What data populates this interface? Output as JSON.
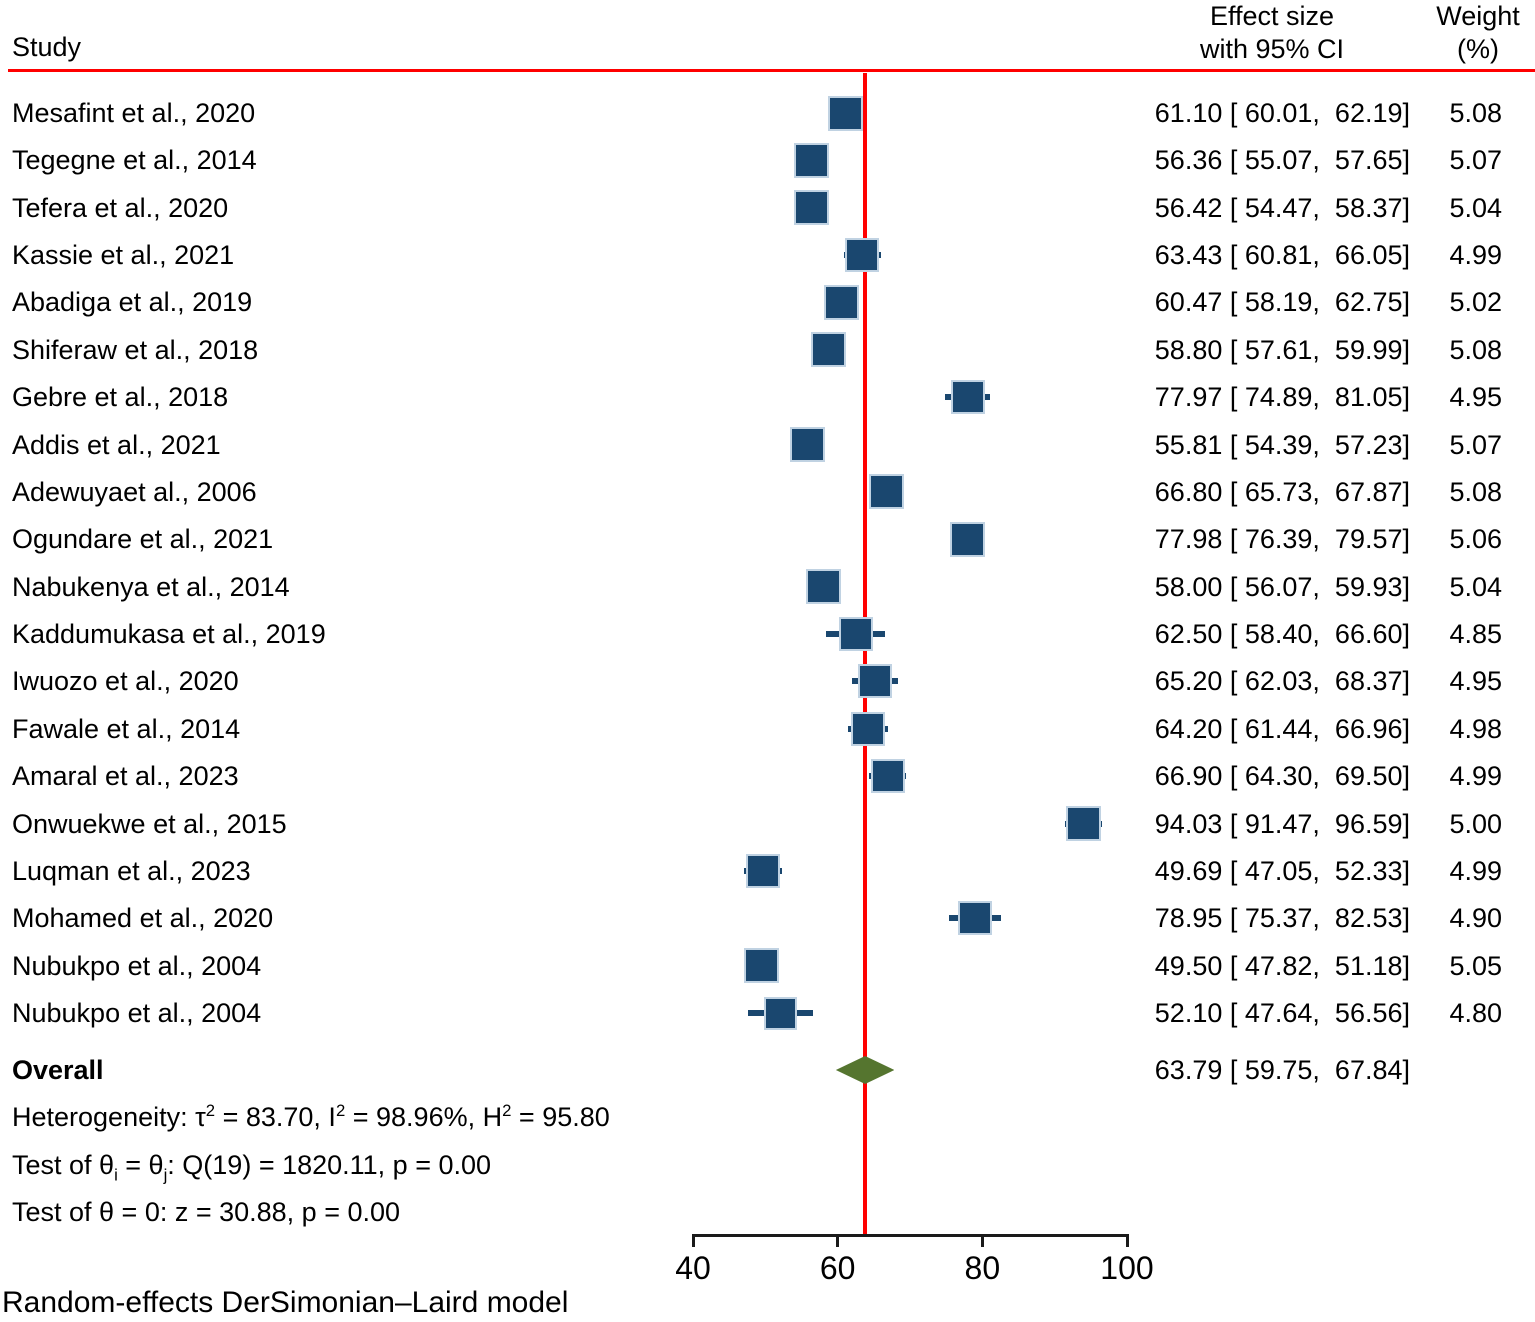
{
  "header": {
    "study_col": "Study",
    "effect_col_line1": "Effect size",
    "effect_col_line2": "with 95% CI",
    "weight_col_line1": "Weight",
    "weight_col_line2": "(%)"
  },
  "chart_data": {
    "type": "forest",
    "x_axis": {
      "ticks": [
        "40",
        "60",
        "80",
        "100"
      ],
      "tick_values": [
        40,
        60,
        80,
        100
      ],
      "range": [
        40,
        100
      ]
    },
    "reference_line_value": 63.79,
    "studies": [
      {
        "label": "Mesafint et al., 2020",
        "effect": 61.1,
        "ci_low": 60.01,
        "ci_high": 62.19,
        "weight": 5.08,
        "effect_text": "61.10 [ 60.01,  62.19]",
        "weight_text": "5.08"
      },
      {
        "label": "Tegegne et al., 2014",
        "effect": 56.36,
        "ci_low": 55.07,
        "ci_high": 57.65,
        "weight": 5.07,
        "effect_text": "56.36 [ 55.07,  57.65]",
        "weight_text": "5.07"
      },
      {
        "label": "Tefera et al., 2020",
        "effect": 56.42,
        "ci_low": 54.47,
        "ci_high": 58.37,
        "weight": 5.04,
        "effect_text": "56.42 [ 54.47,  58.37]",
        "weight_text": "5.04"
      },
      {
        "label": "Kassie et al., 2021",
        "effect": 63.43,
        "ci_low": 60.81,
        "ci_high": 66.05,
        "weight": 4.99,
        "effect_text": "63.43 [ 60.81,  66.05]",
        "weight_text": "4.99"
      },
      {
        "label": "Abadiga et al., 2019",
        "effect": 60.47,
        "ci_low": 58.19,
        "ci_high": 62.75,
        "weight": 5.02,
        "effect_text": "60.47 [ 58.19,  62.75]",
        "weight_text": "5.02"
      },
      {
        "label": "Shiferaw et al., 2018",
        "effect": 58.8,
        "ci_low": 57.61,
        "ci_high": 59.99,
        "weight": 5.08,
        "effect_text": "58.80 [ 57.61,  59.99]",
        "weight_text": "5.08"
      },
      {
        "label": "Gebre et al., 2018",
        "effect": 77.97,
        "ci_low": 74.89,
        "ci_high": 81.05,
        "weight": 4.95,
        "effect_text": "77.97 [ 74.89,  81.05]",
        "weight_text": "4.95"
      },
      {
        "label": "Addis et al., 2021",
        "effect": 55.81,
        "ci_low": 54.39,
        "ci_high": 57.23,
        "weight": 5.07,
        "effect_text": "55.81 [ 54.39,  57.23]",
        "weight_text": "5.07"
      },
      {
        "label": "Adewuyaet al., 2006",
        "effect": 66.8,
        "ci_low": 65.73,
        "ci_high": 67.87,
        "weight": 5.08,
        "effect_text": "66.80 [ 65.73,  67.87]",
        "weight_text": "5.08"
      },
      {
        "label": "Ogundare et al., 2021",
        "effect": 77.98,
        "ci_low": 76.39,
        "ci_high": 79.57,
        "weight": 5.06,
        "effect_text": "77.98 [ 76.39,  79.57]",
        "weight_text": "5.06"
      },
      {
        "label": "Nabukenya et al., 2014",
        "effect": 58.0,
        "ci_low": 56.07,
        "ci_high": 59.93,
        "weight": 5.04,
        "effect_text": "58.00 [ 56.07,  59.93]",
        "weight_text": "5.04"
      },
      {
        "label": "Kaddumukasa et al., 2019",
        "effect": 62.5,
        "ci_low": 58.4,
        "ci_high": 66.6,
        "weight": 4.85,
        "effect_text": "62.50 [ 58.40,  66.60]",
        "weight_text": "4.85"
      },
      {
        "label": "Iwuozo et al., 2020",
        "effect": 65.2,
        "ci_low": 62.03,
        "ci_high": 68.37,
        "weight": 4.95,
        "effect_text": "65.20 [ 62.03,  68.37]",
        "weight_text": "4.95"
      },
      {
        "label": "Fawale et al., 2014",
        "effect": 64.2,
        "ci_low": 61.44,
        "ci_high": 66.96,
        "weight": 4.98,
        "effect_text": "64.20 [ 61.44,  66.96]",
        "weight_text": "4.98"
      },
      {
        "label": "Amaral et al., 2023",
        "effect": 66.9,
        "ci_low": 64.3,
        "ci_high": 69.5,
        "weight": 4.99,
        "effect_text": "66.90 [ 64.30,  69.50]",
        "weight_text": "4.99"
      },
      {
        "label": "Onwuekwe et al., 2015",
        "effect": 94.03,
        "ci_low": 91.47,
        "ci_high": 96.59,
        "weight": 5.0,
        "effect_text": "94.03 [ 91.47,  96.59]",
        "weight_text": "5.00"
      },
      {
        "label": "Luqman et al., 2023",
        "effect": 49.69,
        "ci_low": 47.05,
        "ci_high": 52.33,
        "weight": 4.99,
        "effect_text": "49.69 [ 47.05,  52.33]",
        "weight_text": "4.99"
      },
      {
        "label": "Mohamed et al., 2020",
        "effect": 78.95,
        "ci_low": 75.37,
        "ci_high": 82.53,
        "weight": 4.9,
        "effect_text": "78.95 [ 75.37,  82.53]",
        "weight_text": "4.90"
      },
      {
        "label": "Nubukpo et al., 2004",
        "effect": 49.5,
        "ci_low": 47.82,
        "ci_high": 51.18,
        "weight": 5.05,
        "effect_text": "49.50 [ 47.82,  51.18]",
        "weight_text": "5.05"
      },
      {
        "label": "Nubukpo et al., 2004",
        "effect": 52.1,
        "ci_low": 47.64,
        "ci_high": 56.56,
        "weight": 4.8,
        "effect_text": "52.10 [ 47.64,  56.56]",
        "weight_text": "4.80"
      }
    ],
    "overall": {
      "label": "Overall",
      "effect": 63.79,
      "ci_low": 59.75,
      "ci_high": 67.84,
      "effect_text": "63.79 [ 59.75,  67.84]"
    },
    "stats_lines": [
      {
        "segments": [
          {
            "text": "Heterogeneity: τ"
          },
          {
            "sup": "2"
          },
          {
            "text": " = 83.70, I"
          },
          {
            "sup": "2"
          },
          {
            "text": " = 98.96%, H"
          },
          {
            "sup": "2"
          },
          {
            "text": " = 95.80"
          }
        ]
      },
      {
        "segments": [
          {
            "text": "Test of θ"
          },
          {
            "sub": "i"
          },
          {
            "text": " = θ"
          },
          {
            "sub": "j"
          },
          {
            "text": ": Q(19) = 1820.11, p = 0.00"
          }
        ]
      },
      {
        "segments": [
          {
            "text": "Test of θ = 0: z = 30.88, p = 0.00"
          }
        ]
      }
    ],
    "footer_note": "Random-effects DerSimonian–Laird model",
    "colors": {
      "square_fill": "#1A476F",
      "square_border": "#C0D2E2",
      "ci_line": "#1A476F",
      "diamond_fill": "#55752F",
      "reference_line": "#FF0000",
      "header_rule": "#FF0000",
      "axis_line": "#1A1A1A"
    }
  }
}
